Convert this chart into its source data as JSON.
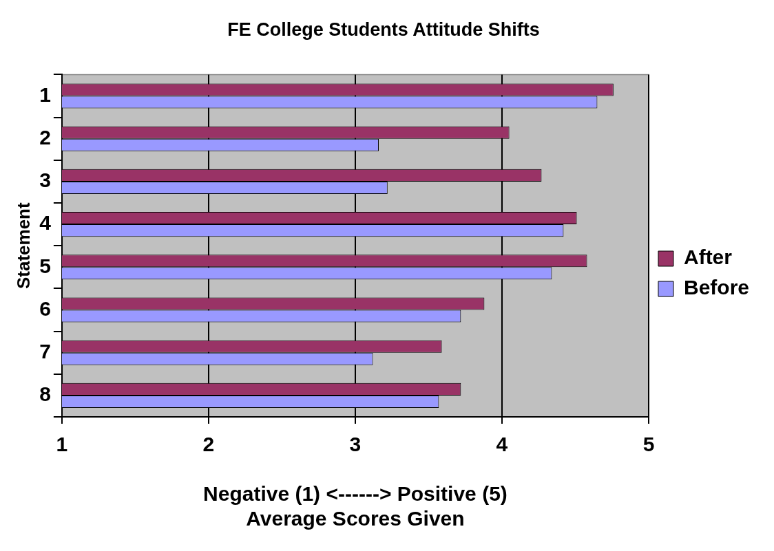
{
  "chart_data": {
    "type": "bar",
    "orientation": "horizontal",
    "title": "FE College Students Attitude Shifts",
    "xlabel": "Negative (1) <------> Positive (5)\nAverage Scores Given",
    "ylabel": "Statement",
    "categories": [
      "1",
      "2",
      "3",
      "4",
      "5",
      "6",
      "7",
      "8"
    ],
    "series": [
      {
        "name": "After",
        "color": "#993366",
        "values": [
          4.76,
          4.05,
          4.27,
          4.51,
          4.58,
          3.88,
          3.59,
          3.72
        ]
      },
      {
        "name": "Before",
        "color": "#9999ff",
        "values": [
          4.65,
          3.16,
          3.22,
          4.42,
          4.34,
          3.72,
          3.12,
          3.57
        ]
      }
    ],
    "xlim": [
      1,
      5
    ],
    "xticks": [
      1,
      2,
      3,
      4,
      5
    ],
    "grid": "x",
    "legend": "right"
  }
}
